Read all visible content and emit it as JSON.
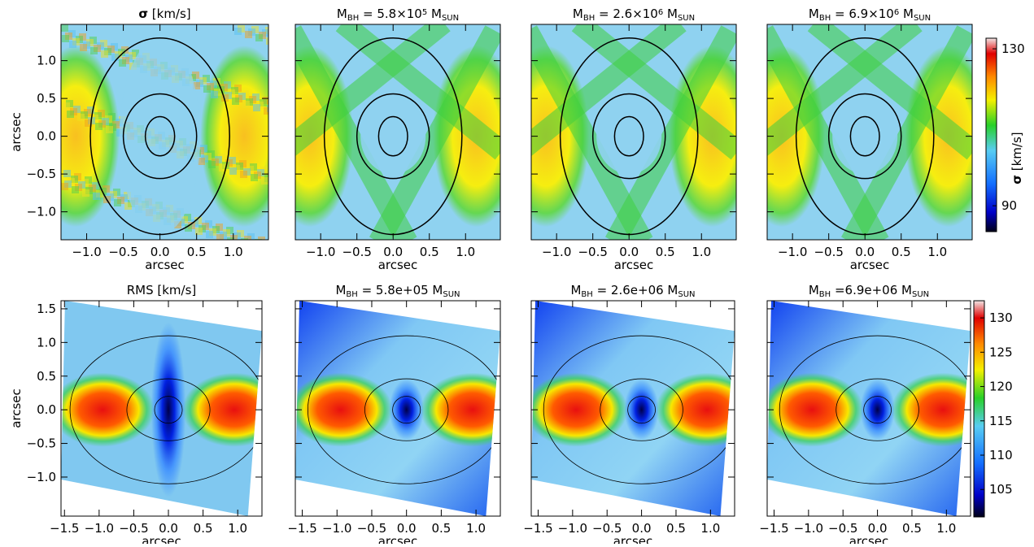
{
  "chart_data": [
    {
      "type": "heatmap",
      "style": "observed",
      "title": [
        {
          "text": "σ",
          "style": "bold"
        },
        {
          "text": " [km/s]"
        }
      ],
      "xlabel": "arcsec",
      "ylabel": "arcsec",
      "xlim": [
        -1.35,
        1.48
      ],
      "ylim": [
        -1.37,
        1.48
      ],
      "xticks": [
        {
          "value": -1.0,
          "label": "−1.0"
        },
        {
          "value": -0.5,
          "label": "−0.5"
        },
        {
          "value": 0.0,
          "label": "0.0"
        },
        {
          "value": 0.5,
          "label": "0.5"
        },
        {
          "value": 1.0,
          "label": "1.0"
        }
      ],
      "yticks": [
        {
          "value": -1.0,
          "label": "−1.0"
        },
        {
          "value": -0.5,
          "label": "−0.5"
        },
        {
          "value": 0.0,
          "label": "0.0"
        },
        {
          "value": 0.5,
          "label": "0.5"
        },
        {
          "value": 1.0,
          "label": "1.0"
        }
      ]
    },
    {
      "type": "heatmap",
      "style": "model",
      "title": [
        {
          "text": "M"
        },
        {
          "text": "BH",
          "style": "sub"
        },
        {
          "text": " = 5.8×10"
        },
        {
          "text": "5",
          "style": "sup"
        },
        {
          "text": " M"
        },
        {
          "text": "SUN",
          "style": "sub"
        }
      ],
      "xlabel": "arcsec",
      "xlim": [
        -1.35,
        1.48
      ],
      "ylim": [
        -1.37,
        1.48
      ],
      "xticks": [
        {
          "value": -1.0,
          "label": "−1.0"
        },
        {
          "value": -0.5,
          "label": "−0.5"
        },
        {
          "value": 0.0,
          "label": "0.0"
        },
        {
          "value": 0.5,
          "label": "0.5"
        },
        {
          "value": 1.0,
          "label": "1.0"
        }
      ],
      "yticks": [
        -1,
        -0.5,
        0,
        0.5,
        1
      ],
      "ytick_labels": false
    },
    {
      "type": "heatmap",
      "style": "model",
      "title": [
        {
          "text": "M"
        },
        {
          "text": "BH",
          "style": "sub"
        },
        {
          "text": " = 2.6×10"
        },
        {
          "text": "6",
          "style": "sup"
        },
        {
          "text": " M"
        },
        {
          "text": "SUN",
          "style": "sub"
        }
      ],
      "xlabel": "arcsec",
      "xlim": [
        -1.35,
        1.48
      ],
      "ylim": [
        -1.37,
        1.48
      ],
      "xticks": [
        {
          "value": -1.0,
          "label": "−1.0"
        },
        {
          "value": -0.5,
          "label": "−0.5"
        },
        {
          "value": 0.0,
          "label": "0.0"
        },
        {
          "value": 0.5,
          "label": "0.5"
        },
        {
          "value": 1.0,
          "label": "1.0"
        }
      ],
      "yticks": [
        -1,
        -0.5,
        0,
        0.5,
        1
      ],
      "ytick_labels": false
    },
    {
      "type": "heatmap",
      "style": "model",
      "title": [
        {
          "text": "M"
        },
        {
          "text": "BH",
          "style": "sub"
        },
        {
          "text": " = 6.9×10"
        },
        {
          "text": "6",
          "style": "sup"
        },
        {
          "text": " M"
        },
        {
          "text": "SUN",
          "style": "sub"
        }
      ],
      "xlabel": "arcsec",
      "xlim": [
        -1.35,
        1.48
      ],
      "ylim": [
        -1.37,
        1.48
      ],
      "xticks": [
        {
          "value": -1.0,
          "label": "−1.0"
        },
        {
          "value": -0.5,
          "label": "−0.5"
        },
        {
          "value": 0.0,
          "label": "0.0"
        },
        {
          "value": 0.5,
          "label": "0.5"
        },
        {
          "value": 1.0,
          "label": "1.0"
        }
      ],
      "yticks": [
        -1,
        -0.5,
        0,
        0.5,
        1
      ],
      "ytick_labels": false
    },
    {
      "type": "heatmap",
      "style": "observed-rms",
      "title": [
        {
          "text": "RMS [km/s]"
        }
      ],
      "xlabel": "arcsec",
      "ylabel": "arcsec",
      "xlim": [
        -1.55,
        1.35
      ],
      "ylim": [
        -1.58,
        1.62
      ],
      "xticks": [
        {
          "value": -1.5,
          "label": "−1.5"
        },
        {
          "value": -1.0,
          "label": "−1.0"
        },
        {
          "value": -0.5,
          "label": "−0.5"
        },
        {
          "value": 0.0,
          "label": "0.0"
        },
        {
          "value": 0.5,
          "label": "0.5"
        },
        {
          "value": 1.0,
          "label": "1.0"
        }
      ],
      "yticks": [
        {
          "value": -1.0,
          "label": "−1.0"
        },
        {
          "value": -0.5,
          "label": "−0.5"
        },
        {
          "value": 0.0,
          "label": "0.0"
        },
        {
          "value": 0.5,
          "label": "0.5"
        },
        {
          "value": 1.0,
          "label": "1.0"
        },
        {
          "value": 1.5,
          "label": "1.5"
        }
      ]
    },
    {
      "type": "heatmap",
      "style": "model-rms",
      "title": [
        {
          "text": "M"
        },
        {
          "text": "BH",
          "style": "sub"
        },
        {
          "text": " = 5.8e+05 M"
        },
        {
          "text": "SUN",
          "style": "sub"
        }
      ],
      "xlabel": "arcsec",
      "xlim": [
        -1.6,
        1.35
      ],
      "ylim": [
        -1.58,
        1.62
      ],
      "xticks": [
        {
          "value": -1.5,
          "label": "−1.5"
        },
        {
          "value": -1.0,
          "label": "−1.0"
        },
        {
          "value": -0.5,
          "label": "−0.5"
        },
        {
          "value": 0.0,
          "label": "0.0"
        },
        {
          "value": 0.5,
          "label": "0.5"
        },
        {
          "value": 1.0,
          "label": "1.0"
        }
      ],
      "yticks": [
        -1,
        -0.5,
        0,
        0.5,
        1,
        1.5
      ],
      "ytick_labels": false
    },
    {
      "type": "heatmap",
      "style": "model-rms",
      "title": [
        {
          "text": "M"
        },
        {
          "text": "BH",
          "style": "sub"
        },
        {
          "text": " = 2.6e+06 M"
        },
        {
          "text": "SUN",
          "style": "sub"
        }
      ],
      "xlabel": "arcsec",
      "xlim": [
        -1.6,
        1.35
      ],
      "ylim": [
        -1.58,
        1.62
      ],
      "xticks": [
        {
          "value": -1.5,
          "label": "−1.5"
        },
        {
          "value": -1.0,
          "label": "−1.0"
        },
        {
          "value": -0.5,
          "label": "−0.5"
        },
        {
          "value": 0.0,
          "label": "0.0"
        },
        {
          "value": 0.5,
          "label": "0.5"
        },
        {
          "value": 1.0,
          "label": "1.0"
        }
      ],
      "yticks": [
        -1,
        -0.5,
        0,
        0.5,
        1,
        1.5
      ],
      "ytick_labels": false
    },
    {
      "type": "heatmap",
      "style": "model-rms",
      "title": [
        {
          "text": "M"
        },
        {
          "text": "BH",
          "style": "sub"
        },
        {
          "text": " =6.9e+06 M"
        },
        {
          "text": "SUN",
          "style": "sub"
        }
      ],
      "xlabel": "arcsec",
      "xlim": [
        -1.6,
        1.35
      ],
      "ylim": [
        -1.58,
        1.62
      ],
      "xticks": [
        {
          "value": -1.5,
          "label": "−1.5"
        },
        {
          "value": -1.0,
          "label": "−1.0"
        },
        {
          "value": -0.5,
          "label": "−0.5"
        },
        {
          "value": 0.0,
          "label": "0.0"
        },
        {
          "value": 0.5,
          "label": "0.5"
        },
        {
          "value": 1.0,
          "label": "1.0"
        }
      ],
      "yticks": [
        -1,
        -0.5,
        0,
        0.5,
        1,
        1.5
      ],
      "ytick_labels": false
    },
    {
      "type": "colorbar",
      "label": [
        {
          "text": "σ",
          "style": "bold"
        },
        {
          "text": " [km/s]"
        }
      ],
      "lim": [
        83.4,
        132.7
      ],
      "ticks": [
        90,
        130
      ]
    },
    {
      "type": "colorbar",
      "lim": [
        101,
        132.5
      ],
      "ticks": [
        105,
        110,
        115,
        120,
        125,
        130
      ]
    }
  ]
}
